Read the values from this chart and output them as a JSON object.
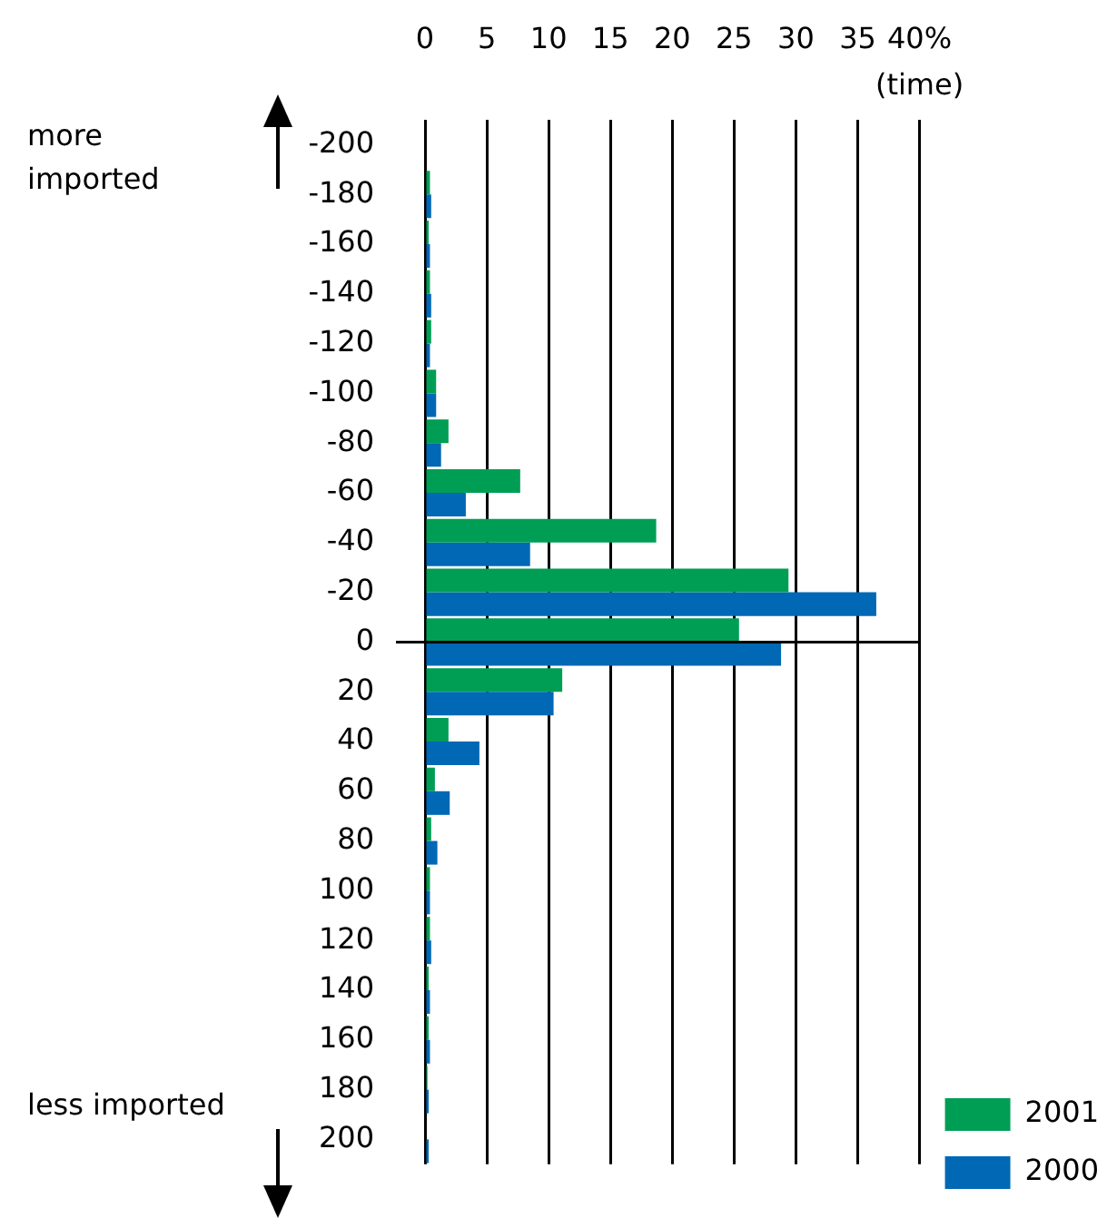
{
  "chart_data": {
    "type": "bar",
    "orientation": "horizontal",
    "xlabel": "(time)",
    "categories": [
      "-200",
      "-180",
      "-160",
      "-140",
      "-120",
      "-100",
      "-80",
      "-60",
      "-40",
      "-20",
      "0",
      "20",
      "40",
      "60",
      "80",
      "100",
      "120",
      "140",
      "160",
      "180",
      "200"
    ],
    "series": [
      {
        "name": "2001",
        "color": "#009e55",
        "values": [
          0,
          0.4,
          0.3,
          0.4,
          0.5,
          0.9,
          1.9,
          7.7,
          18.7,
          29.4,
          25.4,
          11.1,
          1.9,
          0.8,
          0.5,
          0.4,
          0.4,
          0.3,
          0.3,
          0.2,
          0
        ]
      },
      {
        "name": "2000",
        "color": "#0068b4",
        "values": [
          0,
          0.5,
          0.4,
          0.5,
          0.4,
          0.9,
          1.3,
          3.3,
          8.5,
          36.5,
          28.8,
          10.4,
          4.4,
          2.0,
          1.0,
          0.4,
          0.5,
          0.4,
          0.4,
          0.3,
          0.3
        ]
      }
    ],
    "xlim": [
      0,
      40
    ],
    "xticks": [
      0,
      5,
      10,
      15,
      20,
      25,
      30,
      35,
      {
        "value": 40,
        "label": "40%"
      }
    ],
    "grid": "x",
    "legend": "bottom right",
    "ref_lines": [
      {
        "axis": "y",
        "value": "0"
      }
    ],
    "annotations": [
      "more imported",
      "less imported"
    ]
  }
}
